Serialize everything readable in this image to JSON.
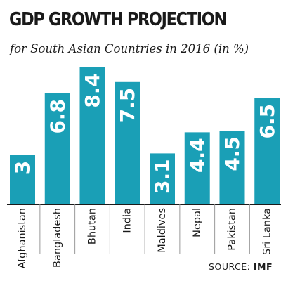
{
  "chart_data": {
    "type": "bar",
    "title": "GDP GROWTH PROJECTION",
    "subtitle": "for South Asian Countries in 2016 (in %)",
    "categories": [
      "Afghanistan",
      "Bangladesh",
      "Bhutan",
      "India",
      "Maldives",
      "Nepal",
      "Pakistan",
      "Sri Lanka"
    ],
    "values": [
      3,
      6.8,
      8.4,
      7.5,
      3.1,
      4.4,
      4.5,
      6.5
    ],
    "data_labels": [
      "3",
      "6.8",
      "8.4",
      "7.5",
      "3.1",
      "4.4",
      "4.5",
      "6.5"
    ],
    "ylim": [
      0,
      8.4
    ],
    "grid": false,
    "legend": "none",
    "bar_color": "#1a9fb6",
    "label_color": "#ffffff"
  },
  "source": {
    "prefix": "SOURCE:",
    "name": "IMF"
  }
}
